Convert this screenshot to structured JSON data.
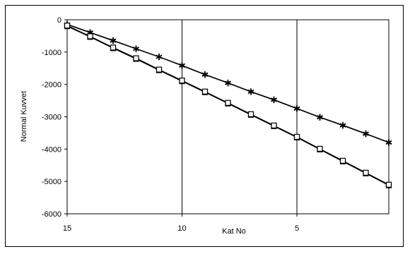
{
  "chart_data": {
    "type": "line",
    "title": "",
    "xlabel": "Kat No",
    "ylabel": "Normal Kuvvet",
    "xlim": [
      15,
      1
    ],
    "ylim": [
      -6000,
      0
    ],
    "x_reversed": true,
    "x_ticks": [
      15,
      10,
      5
    ],
    "y_ticks": [
      0,
      -1000,
      -2000,
      -3000,
      -4000,
      -5000,
      -6000
    ],
    "grid": "vertical",
    "legend": "none",
    "series": [
      {
        "marker": "star",
        "color": "#000000",
        "x": [
          15,
          14,
          13,
          12,
          11,
          10,
          9,
          8,
          7,
          6,
          5,
          4,
          3,
          2,
          1
        ],
        "y": [
          -150,
          -400,
          -650,
          -900,
          -1150,
          -1420,
          -1700,
          -1960,
          -2230,
          -2480,
          -2750,
          -3020,
          -3270,
          -3530,
          -3800
        ]
      },
      {
        "marker": "star",
        "color": "#000000",
        "x": [
          15,
          14,
          13,
          12,
          11,
          10,
          9,
          8,
          7,
          6,
          5,
          4,
          3,
          2,
          1
        ],
        "y": [
          -140,
          -390,
          -640,
          -895,
          -1145,
          -1410,
          -1690,
          -1950,
          -2220,
          -2470,
          -2740,
          -3010,
          -3260,
          -3520,
          -3790
        ]
      },
      {
        "marker": "square",
        "color": "#000000",
        "x": [
          15,
          14,
          13,
          12,
          11,
          10,
          9,
          8,
          7,
          6,
          5,
          4,
          3,
          2,
          1
        ],
        "y": [
          -200,
          -530,
          -880,
          -1210,
          -1560,
          -1900,
          -2240,
          -2590,
          -2940,
          -3290,
          -3640,
          -4010,
          -4380,
          -4750,
          -5120
        ]
      },
      {
        "marker": "square",
        "color": "#000000",
        "x": [
          15,
          14,
          13,
          12,
          11,
          10,
          9,
          8,
          7,
          6,
          5,
          4,
          3,
          2,
          1
        ],
        "y": [
          -180,
          -510,
          -860,
          -1190,
          -1540,
          -1880,
          -2220,
          -2570,
          -2920,
          -3270,
          -3620,
          -3990,
          -4360,
          -4730,
          -5100
        ]
      }
    ]
  }
}
